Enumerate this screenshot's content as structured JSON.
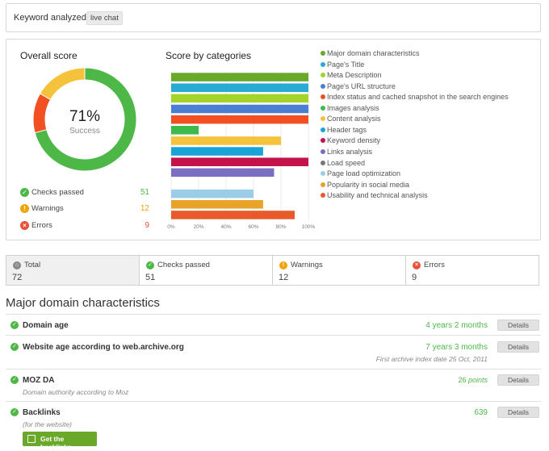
{
  "keyword": {
    "label": "Keyword analyzed:",
    "value": "live chat"
  },
  "overall": {
    "title": "Overall score",
    "percent": "71%",
    "status": "Success",
    "donut": {
      "passed": 51,
      "warnings": 12,
      "errors": 9
    },
    "stats": [
      {
        "label": "Checks passed",
        "value": "51",
        "color": "#4db848"
      },
      {
        "label": "Warnings",
        "value": "12",
        "color": "#f0a30a"
      },
      {
        "label": "Errors",
        "value": "9",
        "color": "#e8513a"
      }
    ]
  },
  "categories_title": "Score by categories",
  "chart_data": {
    "type": "bar",
    "orientation": "horizontal",
    "title": "Score by categories",
    "categories": [
      "Major domain characteristics",
      "Page's Title",
      "Meta Description",
      "Page's URL structure",
      "Index status and cached snapshot in the search engines",
      "Images analysis",
      "Content analysis",
      "Header tags",
      "Keyword density",
      "Links analysis",
      "Load speed",
      "Page load optimization",
      "Popularity in social media",
      "Usability and technical analysis"
    ],
    "values": [
      100,
      100,
      100,
      100,
      100,
      20,
      80,
      67,
      100,
      75,
      0,
      60,
      67,
      90
    ],
    "colors": [
      "#6aa82a",
      "#27aad4",
      "#a3d42a",
      "#4a7fd4",
      "#f25022",
      "#3dba4a",
      "#f5c33b",
      "#1aa3d6",
      "#c4124b",
      "#7a6fc0",
      "#777777",
      "#9ccde8",
      "#e8a32a",
      "#e85a2a"
    ],
    "xlim": [
      0,
      100
    ],
    "xticks": [
      "0%",
      "20%",
      "40%",
      "60%",
      "80%",
      "100%"
    ],
    "legend": "right"
  },
  "summary": [
    {
      "label": "Total",
      "value": "72",
      "icon": "home-icon",
      "color": "#888888"
    },
    {
      "label": "Checks passed",
      "value": "51",
      "icon": "check-icon",
      "color": "#4db848"
    },
    {
      "label": "Warnings",
      "value": "12",
      "icon": "warning-icon",
      "color": "#f0a30a"
    },
    {
      "label": "Errors",
      "value": "9",
      "icon": "error-icon",
      "color": "#e8513a"
    }
  ],
  "section_title": "Major domain characteristics",
  "checks": [
    {
      "title": "Domain age",
      "value": "4 years 2 months",
      "button": "Details"
    },
    {
      "title": "Website age according to web.archive.org",
      "value": "7 years 3 months",
      "note": "First archive index date 25 Oct, 2011",
      "button": "Details"
    },
    {
      "title": "MOZ DA",
      "value": "26",
      "unit": "points",
      "sub": "Domain authority according to Moz",
      "button": "Details"
    },
    {
      "title": "Backlinks",
      "value": "639",
      "sub": "(for the website)",
      "button": "Details"
    }
  ],
  "backlinks_button": "Get the backlinks"
}
